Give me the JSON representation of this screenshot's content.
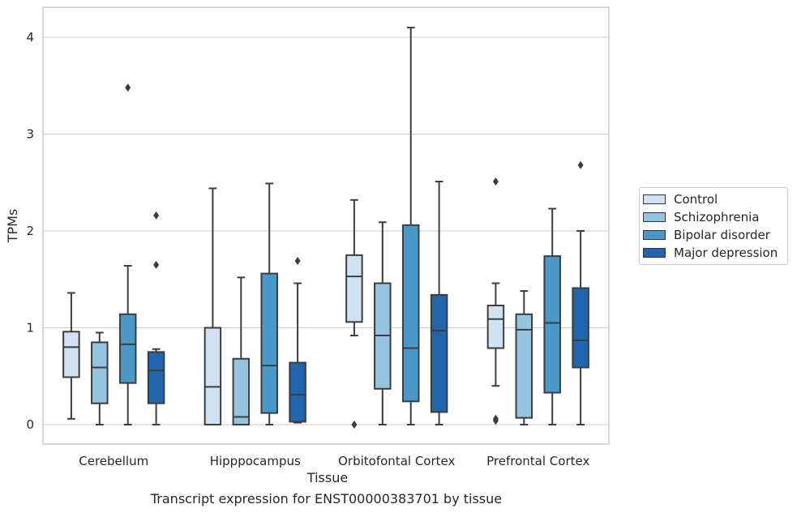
{
  "chart_data": {
    "type": "boxplot",
    "title": "",
    "caption": "Transcript expression for ENST00000383701 by tissue",
    "xlabel": "Tissue",
    "ylabel": "TPMs",
    "ylim": [
      -0.2,
      4.3
    ],
    "yticks": [
      0,
      1,
      2,
      3,
      4
    ],
    "grid": "horizontal",
    "legend_position": "right",
    "categories": [
      "Cerebellum",
      "Hipppocampus",
      "Orbitofontal Cortex",
      "Prefrontal Cortex"
    ],
    "series": [
      {
        "name": "Control",
        "color": "#d0e1f2",
        "boxes": [
          {
            "whisker_low": 0.06,
            "q1": 0.49,
            "median": 0.8,
            "q3": 0.96,
            "whisker_high": 1.36,
            "outliers": []
          },
          {
            "whisker_low": 0.0,
            "q1": 0.0,
            "median": 0.39,
            "q3": 1.0,
            "whisker_high": 2.44,
            "outliers": []
          },
          {
            "whisker_low": 0.92,
            "q1": 1.06,
            "median": 1.53,
            "q3": 1.75,
            "whisker_high": 2.32,
            "outliers": [
              0.0
            ]
          },
          {
            "whisker_low": 0.4,
            "q1": 0.79,
            "median": 1.09,
            "q3": 1.23,
            "whisker_high": 1.46,
            "outliers": [
              2.51,
              0.06,
              0.04
            ]
          }
        ]
      },
      {
        "name": "Schizophrenia",
        "color": "#94c4df",
        "boxes": [
          {
            "whisker_low": 0.0,
            "q1": 0.22,
            "median": 0.59,
            "q3": 0.85,
            "whisker_high": 0.95,
            "outliers": []
          },
          {
            "whisker_low": 0.0,
            "q1": 0.0,
            "median": 0.08,
            "q3": 0.68,
            "whisker_high": 1.52,
            "outliers": []
          },
          {
            "whisker_low": 0.0,
            "q1": 0.37,
            "median": 0.92,
            "q3": 1.46,
            "whisker_high": 2.09,
            "outliers": []
          },
          {
            "whisker_low": 0.0,
            "q1": 0.07,
            "median": 0.98,
            "q3": 1.14,
            "whisker_high": 1.38,
            "outliers": []
          }
        ]
      },
      {
        "name": "Bipolar disorder",
        "color": "#4a98c9",
        "boxes": [
          {
            "whisker_low": 0.0,
            "q1": 0.43,
            "median": 0.83,
            "q3": 1.14,
            "whisker_high": 1.64,
            "outliers": [
              3.48
            ]
          },
          {
            "whisker_low": 0.0,
            "q1": 0.12,
            "median": 0.61,
            "q3": 1.56,
            "whisker_high": 2.49,
            "outliers": []
          },
          {
            "whisker_low": 0.0,
            "q1": 0.24,
            "median": 0.79,
            "q3": 2.06,
            "whisker_high": 4.1,
            "outliers": []
          },
          {
            "whisker_low": 0.0,
            "q1": 0.33,
            "median": 1.05,
            "q3": 1.74,
            "whisker_high": 2.23,
            "outliers": []
          }
        ]
      },
      {
        "name": "Major depression",
        "color": "#2166ac",
        "boxes": [
          {
            "whisker_low": 0.0,
            "q1": 0.22,
            "median": 0.56,
            "q3": 0.75,
            "whisker_high": 0.78,
            "outliers": [
              2.16,
              1.65
            ]
          },
          {
            "whisker_low": 0.02,
            "q1": 0.03,
            "median": 0.31,
            "q3": 0.64,
            "whisker_high": 1.46,
            "outliers": [
              1.69
            ]
          },
          {
            "whisker_low": 0.0,
            "q1": 0.13,
            "median": 0.97,
            "q3": 1.34,
            "whisker_high": 2.51,
            "outliers": []
          },
          {
            "whisker_low": 0.0,
            "q1": 0.59,
            "median": 0.87,
            "q3": 1.41,
            "whisker_high": 2.0,
            "outliers": [
              2.68
            ]
          }
        ]
      }
    ]
  }
}
